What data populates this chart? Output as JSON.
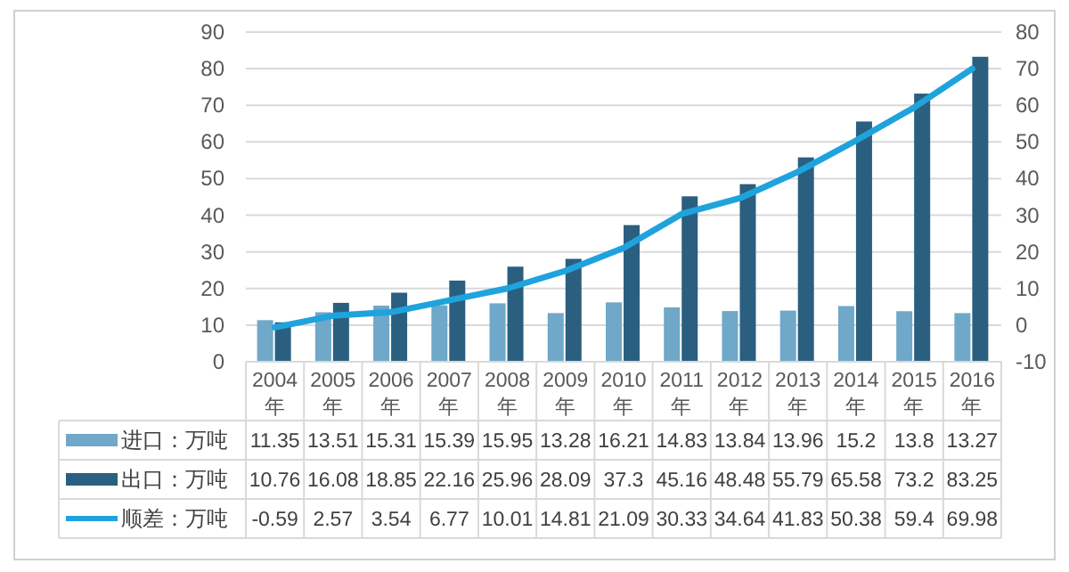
{
  "chart_data": {
    "type": "bar",
    "categories": [
      "2004年",
      "2005年",
      "2006年",
      "2007年",
      "2008年",
      "2009年",
      "2010年",
      "2011年",
      "2012年",
      "2013年",
      "2014年",
      "2015年",
      "2016年"
    ],
    "series": [
      {
        "name": "进口：万吨",
        "color": "#6fa8c8",
        "values": [
          11.35,
          13.51,
          15.31,
          15.39,
          15.95,
          13.28,
          16.21,
          14.83,
          13.84,
          13.96,
          15.2,
          13.8,
          13.27
        ]
      },
      {
        "name": "出口：万吨",
        "color": "#2a5f80",
        "values": [
          10.76,
          16.08,
          18.85,
          22.16,
          25.96,
          28.09,
          37.3,
          45.16,
          48.48,
          55.79,
          65.58,
          73.2,
          83.25
        ]
      },
      {
        "name": "顺差：万吨",
        "color": "#1fa3dd",
        "type": "line",
        "axis": "y2",
        "values": [
          -0.59,
          2.57,
          3.54,
          6.77,
          10.01,
          14.81,
          21.09,
          30.33,
          34.64,
          41.83,
          50.38,
          59.4,
          69.98
        ]
      }
    ],
    "ylim": [
      0,
      90
    ],
    "yticks": [
      0,
      10,
      20,
      30,
      40,
      50,
      60,
      70,
      80,
      90
    ],
    "y2lim": [
      -10,
      80
    ],
    "y2ticks": [
      -10,
      0,
      10,
      20,
      30,
      40,
      50,
      60,
      70,
      80
    ],
    "grid": "y",
    "legend": "bottom",
    "data_labels": true
  }
}
